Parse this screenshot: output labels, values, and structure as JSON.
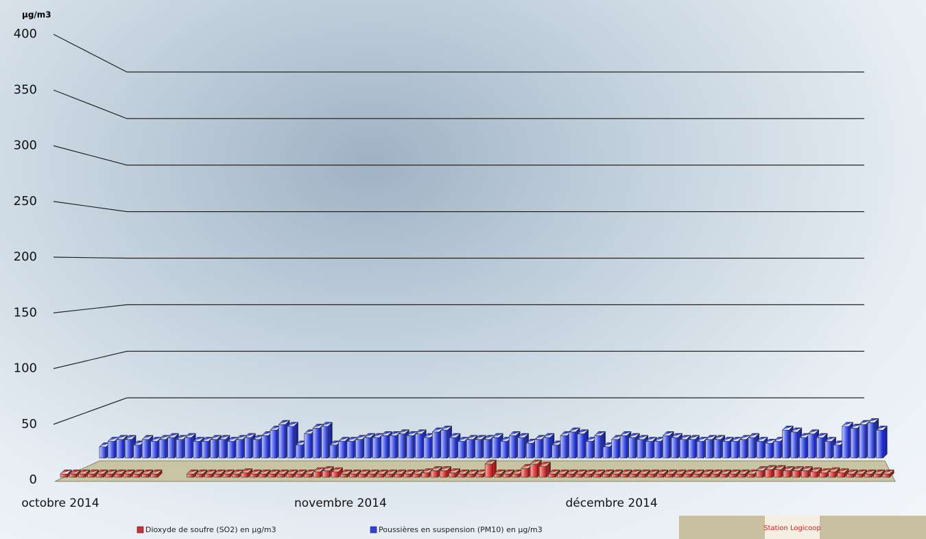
{
  "chart_data": {
    "type": "bar3d",
    "y_label": "µg/m3",
    "ylim": [
      0,
      400
    ],
    "yticks": [
      0,
      50,
      100,
      150,
      200,
      250,
      300,
      350,
      400
    ],
    "grid": true,
    "categories": [
      "octobre 2014",
      null,
      null,
      null,
      null,
      null,
      null,
      null,
      null,
      null,
      null,
      null,
      null,
      null,
      null,
      null,
      null,
      null,
      null,
      null,
      null,
      null,
      null,
      null,
      null,
      null,
      null,
      null,
      null,
      null,
      null,
      "novembre 2014",
      null,
      null,
      null,
      null,
      null,
      null,
      null,
      null,
      null,
      null,
      null,
      null,
      null,
      null,
      null,
      null,
      null,
      null,
      null,
      null,
      null,
      null,
      null,
      null,
      null,
      null,
      null,
      null,
      null,
      "décembre 2014",
      null,
      null,
      null,
      null,
      null,
      null,
      null,
      null,
      null,
      null,
      null,
      null,
      null,
      null,
      null,
      null,
      null,
      null,
      null,
      null,
      null,
      null,
      null,
      null,
      null,
      null,
      null,
      null,
      null,
      null
    ],
    "series": [
      {
        "name": "Dioxyde de soufre (SO2) en µg/m3",
        "color": "#d03030",
        "values": [
          3,
          3,
          3,
          3,
          3,
          3,
          3,
          3,
          3,
          3,
          3,
          null,
          null,
          null,
          3,
          3,
          3,
          3,
          3,
          3,
          4,
          3,
          3,
          3,
          3,
          3,
          3,
          3,
          5,
          6,
          5,
          3,
          3,
          3,
          3,
          3,
          3,
          3,
          3,
          3,
          4,
          6,
          6,
          4,
          3,
          3,
          3,
          12,
          3,
          3,
          3,
          8,
          12,
          10,
          3,
          3,
          3,
          3,
          3,
          3,
          3,
          3,
          3,
          3,
          3,
          3,
          3,
          3,
          3,
          3,
          3,
          3,
          3,
          3,
          3,
          3,
          3,
          6,
          7,
          7,
          6,
          6,
          6,
          5,
          4,
          5,
          4,
          3,
          3,
          3,
          3,
          3
        ]
      },
      {
        "name": "Poussières en suspension (PM10) en µg/m3",
        "color": "#3040e0",
        "values": [
          12,
          18,
          20,
          20,
          14,
          20,
          18,
          20,
          22,
          20,
          22,
          18,
          18,
          20,
          20,
          18,
          20,
          22,
          20,
          24,
          30,
          36,
          34,
          14,
          26,
          32,
          34,
          14,
          18,
          18,
          20,
          22,
          22,
          24,
          24,
          26,
          24,
          26,
          22,
          28,
          30,
          22,
          18,
          20,
          20,
          20,
          22,
          18,
          24,
          22,
          16,
          20,
          22,
          14,
          24,
          28,
          26,
          18,
          24,
          12,
          20,
          24,
          22,
          20,
          18,
          18,
          24,
          22,
          20,
          20,
          18,
          20,
          20,
          18,
          18,
          20,
          22,
          18,
          16,
          18,
          30,
          28,
          22,
          26,
          22,
          18,
          14,
          34,
          32,
          36,
          38,
          30
        ]
      }
    ]
  },
  "inset_label": "Station Logicoop"
}
